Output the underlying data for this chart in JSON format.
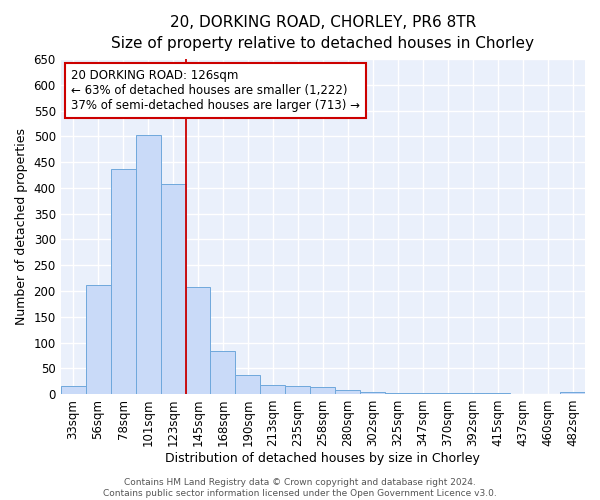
{
  "title": "20, DORKING ROAD, CHORLEY, PR6 8TR",
  "subtitle": "Size of property relative to detached houses in Chorley",
  "xlabel": "Distribution of detached houses by size in Chorley",
  "ylabel": "Number of detached properties",
  "categories": [
    "33sqm",
    "56sqm",
    "78sqm",
    "101sqm",
    "123sqm",
    "145sqm",
    "168sqm",
    "190sqm",
    "213sqm",
    "235sqm",
    "258sqm",
    "280sqm",
    "302sqm",
    "325sqm",
    "347sqm",
    "370sqm",
    "392sqm",
    "415sqm",
    "437sqm",
    "460sqm",
    "482sqm"
  ],
  "values": [
    15,
    212,
    436,
    502,
    408,
    207,
    84,
    38,
    17,
    15,
    13,
    7,
    5,
    3,
    3,
    2,
    2,
    2,
    1,
    1,
    4
  ],
  "bar_color": "#c9daf8",
  "bar_edge_color": "#6fa8dc",
  "annotation_text": "20 DORKING ROAD: 126sqm\n← 63% of detached houses are smaller (1,222)\n37% of semi-detached houses are larger (713) →",
  "annotation_box_color": "#ffffff",
  "annotation_box_edge_color": "#cc0000",
  "title_fontsize": 11,
  "subtitle_fontsize": 10,
  "xlabel_fontsize": 9,
  "ylabel_fontsize": 9,
  "tick_fontsize": 8.5,
  "annotation_fontsize": 8.5,
  "footer_text": "Contains HM Land Registry data © Crown copyright and database right 2024.\nContains public sector information licensed under the Open Government Licence v3.0.",
  "ylim": [
    0,
    650
  ],
  "yticks": [
    0,
    50,
    100,
    150,
    200,
    250,
    300,
    350,
    400,
    450,
    500,
    550,
    600,
    650
  ],
  "background_color": "#eaf0fb",
  "grid_color": "#ffffff",
  "vline_color": "#cc0000",
  "vline_x": 4.5,
  "footer_fontsize": 6.5,
  "footer_color": "#555555"
}
